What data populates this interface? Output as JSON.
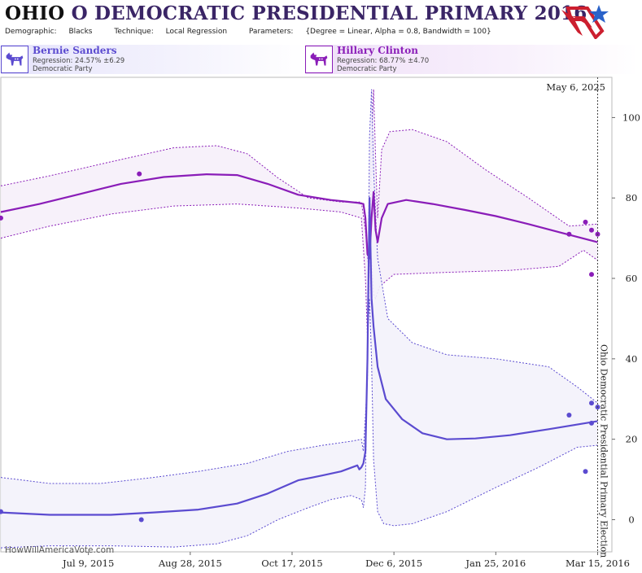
{
  "header": {
    "title_state": "OHIO",
    "title_rest": "O DEMOCRATIC PRESIDENTIAL PRIMARY 2016",
    "demographic_label": "Demographic:",
    "demographic_value": "Blacks",
    "technique_label": "Technique:",
    "technique_value": "Local Regression",
    "parameters_label": "Parameters:",
    "parameters_value": "{Degree = Linear, Alpha = 0.8, Bandwidth = 100}"
  },
  "logo": {
    "icon": "stars-and-stripes-logo-icon",
    "colors": [
      "#cc1f2f",
      "#2a62c9"
    ]
  },
  "candidates": [
    {
      "id": "sanders",
      "name": "Bernie Sanders",
      "regression": "Regression: 24.57% ±6.29",
      "party": "Democratic Party",
      "icon": "donkey-icon",
      "color": "#5b4bd0"
    },
    {
      "id": "clinton",
      "name": "Hillary Clinton",
      "regression": "Regression: 68.77% ±4.70",
      "party": "Democratic Party",
      "icon": "donkey-icon",
      "color": "#8a1db8"
    }
  ],
  "chart": {
    "date_label": "May 6, 2025",
    "election_label": "Ohio Democratic Presidential Primary Election",
    "watermark": "HowWillAmericaVote.com"
  },
  "chart_data": {
    "type": "line",
    "x_domain": [
      "2015-05-27",
      "2016-03-22"
    ],
    "ylim": [
      -8,
      110
    ],
    "election_date": "2016-03-15",
    "x_ticks": [
      {
        "date": "2015-07-09",
        "label": "Jul 9, 2015"
      },
      {
        "date": "2015-08-28",
        "label": "Aug 28, 2015"
      },
      {
        "date": "2015-10-17",
        "label": "Oct 17, 2015"
      },
      {
        "date": "2015-12-06",
        "label": "Dec 6, 2015"
      },
      {
        "date": "2016-01-25",
        "label": "Jan 25, 2016"
      },
      {
        "date": "2016-03-15",
        "label": "Mar 15, 2016"
      }
    ],
    "y_ticks": [
      0,
      20,
      40,
      60,
      80,
      100
    ],
    "grid": false,
    "series": [
      {
        "name": "Hillary Clinton",
        "color": "#8a1db8",
        "band_fill": "#f6eff9",
        "line": [
          [
            "2015-05-27",
            76.5
          ],
          [
            "2015-06-15",
            78.5
          ],
          [
            "2015-07-05",
            81
          ],
          [
            "2015-07-25",
            83.5
          ],
          [
            "2015-08-15",
            85.2
          ],
          [
            "2015-09-05",
            85.9
          ],
          [
            "2015-09-20",
            85.7
          ],
          [
            "2015-10-05",
            83.5
          ],
          [
            "2015-10-20",
            80.8
          ],
          [
            "2015-11-05",
            79.5
          ],
          [
            "2015-11-18",
            78.8
          ],
          [
            "2015-11-21",
            78.5
          ],
          [
            "2015-11-22",
            75
          ],
          [
            "2015-11-23",
            66
          ],
          [
            "2015-11-24",
            65
          ],
          [
            "2015-11-25",
            75
          ],
          [
            "2015-11-26",
            81.5
          ],
          [
            "2015-11-27",
            72
          ],
          [
            "2015-11-28",
            69
          ],
          [
            "2015-11-30",
            75
          ],
          [
            "2015-12-03",
            78.5
          ],
          [
            "2015-12-12",
            79.5
          ],
          [
            "2015-12-25",
            78.5
          ],
          [
            "2016-01-10",
            77
          ],
          [
            "2016-01-25",
            75.5
          ],
          [
            "2016-02-10",
            73.5
          ],
          [
            "2016-02-25",
            71.5
          ],
          [
            "2016-03-15",
            69
          ]
        ],
        "upper": [
          [
            "2015-05-27",
            83
          ],
          [
            "2015-06-20",
            85.5
          ],
          [
            "2015-07-20",
            89
          ],
          [
            "2015-08-20",
            92.5
          ],
          [
            "2015-09-10",
            93
          ],
          [
            "2015-09-25",
            91
          ],
          [
            "2015-10-10",
            85
          ],
          [
            "2015-10-25",
            80
          ],
          [
            "2015-11-10",
            79
          ],
          [
            "2015-11-20",
            79
          ],
          [
            "2015-11-22",
            72
          ],
          [
            "2015-11-24",
            60
          ],
          [
            "2015-11-25",
            95
          ],
          [
            "2015-11-26",
            107
          ],
          [
            "2015-11-27",
            90
          ],
          [
            "2015-11-28",
            75
          ],
          [
            "2015-11-30",
            92
          ],
          [
            "2015-12-04",
            96.5
          ],
          [
            "2015-12-15",
            97
          ],
          [
            "2016-01-01",
            94
          ],
          [
            "2016-01-20",
            87
          ],
          [
            "2016-02-10",
            80
          ],
          [
            "2016-03-01",
            73
          ],
          [
            "2016-03-15",
            73.5
          ]
        ],
        "lower": [
          [
            "2015-05-27",
            70
          ],
          [
            "2015-06-20",
            73
          ],
          [
            "2015-07-20",
            76
          ],
          [
            "2015-08-20",
            78
          ],
          [
            "2015-09-20",
            78.5
          ],
          [
            "2015-10-20",
            77.5
          ],
          [
            "2015-11-10",
            76.5
          ],
          [
            "2015-11-20",
            75
          ],
          [
            "2015-11-22",
            60
          ],
          [
            "2015-11-23",
            45
          ],
          [
            "2015-11-24",
            55
          ],
          [
            "2015-11-25",
            65
          ],
          [
            "2015-11-26",
            56
          ],
          [
            "2015-11-27",
            55
          ],
          [
            "2015-11-29",
            58
          ],
          [
            "2015-12-06",
            61
          ],
          [
            "2016-01-01",
            61.5
          ],
          [
            "2016-02-01",
            62
          ],
          [
            "2016-02-25",
            63
          ],
          [
            "2016-03-08",
            67
          ],
          [
            "2016-03-15",
            64.5
          ]
        ],
        "points": [
          [
            "2015-05-27",
            75
          ],
          [
            "2015-08-03",
            86
          ],
          [
            "2016-03-01",
            71
          ],
          [
            "2016-03-09",
            74
          ],
          [
            "2016-03-12",
            72
          ],
          [
            "2016-03-12",
            61
          ],
          [
            "2016-03-15",
            71
          ]
        ]
      },
      {
        "name": "Bernie Sanders",
        "color": "#5b4bd0",
        "band_fill": "#f3f2fb",
        "line": [
          [
            "2015-05-27",
            1.8
          ],
          [
            "2015-06-20",
            1.2
          ],
          [
            "2015-07-20",
            1.2
          ],
          [
            "2015-08-10",
            1.8
          ],
          [
            "2015-09-01",
            2.5
          ],
          [
            "2015-09-20",
            4
          ],
          [
            "2015-10-05",
            6.5
          ],
          [
            "2015-10-20",
            9.8
          ],
          [
            "2015-11-01",
            11
          ],
          [
            "2015-11-10",
            12
          ],
          [
            "2015-11-18",
            13.5
          ],
          [
            "2015-11-19",
            12.5
          ],
          [
            "2015-11-20",
            13
          ],
          [
            "2015-11-21",
            14
          ],
          [
            "2015-11-22",
            17
          ],
          [
            "2015-11-23",
            40
          ],
          [
            "2015-11-24",
            80
          ],
          [
            "2015-11-25",
            55
          ],
          [
            "2015-11-26",
            48
          ],
          [
            "2015-11-28",
            38
          ],
          [
            "2015-12-02",
            30
          ],
          [
            "2015-12-10",
            25
          ],
          [
            "2015-12-20",
            21.5
          ],
          [
            "2016-01-01",
            20
          ],
          [
            "2016-01-15",
            20.2
          ],
          [
            "2016-02-01",
            21
          ],
          [
            "2016-02-20",
            22.5
          ],
          [
            "2016-03-15",
            24.5
          ]
        ],
        "upper": [
          [
            "2015-05-27",
            10.5
          ],
          [
            "2015-06-20",
            9
          ],
          [
            "2015-07-15",
            9
          ],
          [
            "2015-08-10",
            10.5
          ],
          [
            "2015-09-01",
            12
          ],
          [
            "2015-09-25",
            14
          ],
          [
            "2015-10-15",
            17
          ],
          [
            "2015-11-01",
            18.5
          ],
          [
            "2015-11-15",
            19.5
          ],
          [
            "2015-11-20",
            20
          ],
          [
            "2015-11-21",
            17
          ],
          [
            "2015-11-23",
            35
          ],
          [
            "2015-11-24",
            95
          ],
          [
            "2015-11-25",
            107
          ],
          [
            "2015-11-26",
            87
          ],
          [
            "2015-11-28",
            65
          ],
          [
            "2015-12-03",
            50
          ],
          [
            "2015-12-15",
            44
          ],
          [
            "2016-01-01",
            41
          ],
          [
            "2016-01-25",
            40
          ],
          [
            "2016-02-20",
            38
          ],
          [
            "2016-03-05",
            33
          ],
          [
            "2016-03-15",
            29
          ]
        ],
        "lower": [
          [
            "2015-05-27",
            -7
          ],
          [
            "2015-06-20",
            -6.5
          ],
          [
            "2015-07-20",
            -6.5
          ],
          [
            "2015-08-20",
            -6.8
          ],
          [
            "2015-09-10",
            -6
          ],
          [
            "2015-09-25",
            -4
          ],
          [
            "2015-10-10",
            0
          ],
          [
            "2015-10-25",
            3
          ],
          [
            "2015-11-05",
            5
          ],
          [
            "2015-11-15",
            6
          ],
          [
            "2015-11-20",
            5
          ],
          [
            "2015-11-21",
            3
          ],
          [
            "2015-11-22",
            8
          ],
          [
            "2015-11-23",
            45
          ],
          [
            "2015-11-24",
            55
          ],
          [
            "2015-11-25",
            40
          ],
          [
            "2015-11-26",
            15
          ],
          [
            "2015-11-28",
            2
          ],
          [
            "2015-12-01",
            -1
          ],
          [
            "2015-12-06",
            -1.5
          ],
          [
            "2015-12-15",
            -1
          ],
          [
            "2016-01-01",
            2
          ],
          [
            "2016-01-25",
            8
          ],
          [
            "2016-02-15",
            13
          ],
          [
            "2016-03-05",
            18
          ],
          [
            "2016-03-15",
            18.5
          ]
        ],
        "points": [
          [
            "2015-05-27",
            2
          ],
          [
            "2015-08-04",
            0
          ],
          [
            "2016-03-01",
            26
          ],
          [
            "2016-03-09",
            12
          ],
          [
            "2016-03-12",
            24
          ],
          [
            "2016-03-12",
            29
          ],
          [
            "2016-03-15",
            28
          ]
        ]
      }
    ]
  }
}
